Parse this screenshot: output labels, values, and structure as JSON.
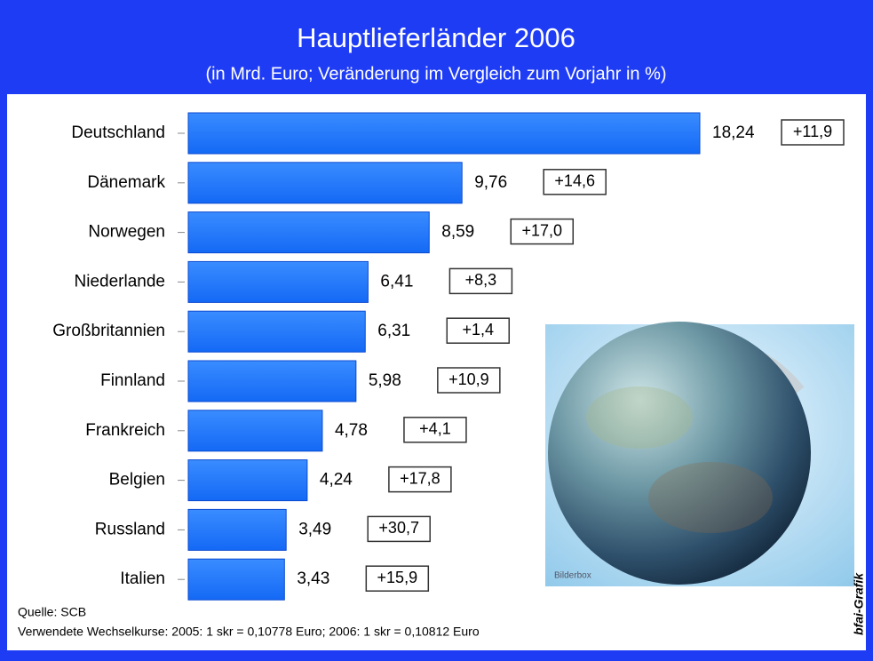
{
  "chart_data": {
    "type": "bar",
    "title": "Hauptlieferländer 2006",
    "subtitle": "(in Mrd. Euro; Veränderung im Vergleich zum Vorjahr in %)",
    "categories": [
      "Deutschland",
      "Dänemark",
      "Norwegen",
      "Niederlande",
      "Großbritannien",
      "Finnland",
      "Frankreich",
      "Belgien",
      "Russland",
      "Italien"
    ],
    "values": [
      18.24,
      9.76,
      8.59,
      6.41,
      6.31,
      5.98,
      4.78,
      4.24,
      3.49,
      3.43
    ],
    "value_labels": [
      "18,24",
      "9,76",
      "8,59",
      "6,41",
      "6,31",
      "5,98",
      "4,78",
      "4,24",
      "3,49",
      "3,43"
    ],
    "changes": [
      11.9,
      14.6,
      17.0,
      8.3,
      1.4,
      10.9,
      4.1,
      17.8,
      30.7,
      15.9
    ],
    "change_labels": [
      "+11,9",
      "+14,6",
      "+17,0",
      "+8,3",
      "+1,4",
      "+10,9",
      "+4,1",
      "+17,8",
      "+30,7",
      "+15,9"
    ],
    "color": "#1c7cff",
    "source": "Quelle: SCB",
    "note": "Verwendete Wechselkurse: 2005: 1 skr = 0,10778 Euro; 2006: 1 skr = 0,10812 Euro",
    "image_credit": "Bilderbox",
    "credit": "bfai-Grafik"
  }
}
